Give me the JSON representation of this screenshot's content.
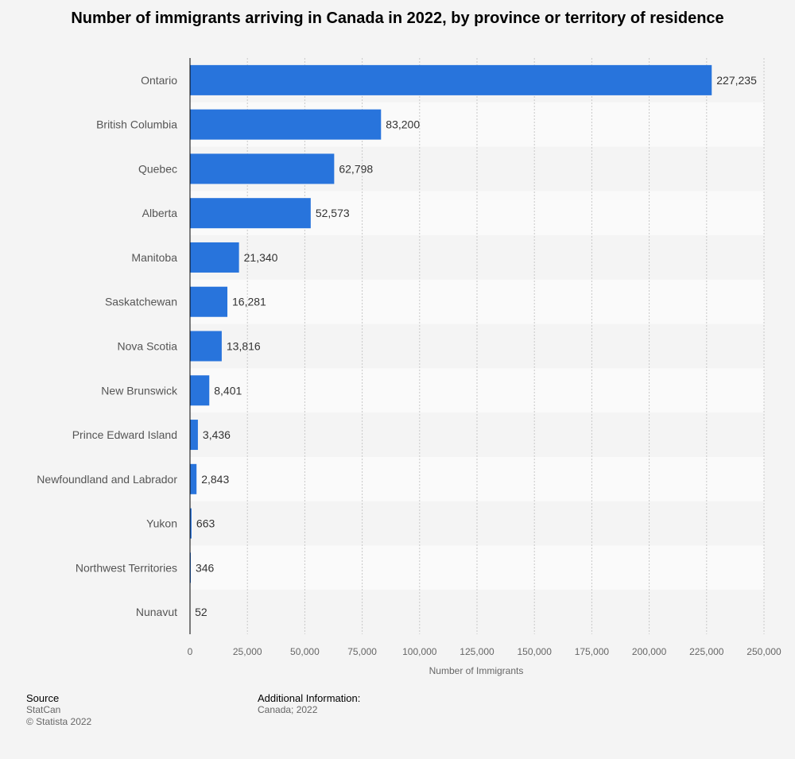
{
  "chart_data": {
    "type": "bar",
    "orientation": "horizontal",
    "title": "Number of immigrants arriving in Canada in 2022, by province or territory of residence",
    "xlabel": "Number of Immigrants",
    "ylabel": "",
    "xlim": [
      0,
      250000
    ],
    "xticks": [
      0,
      25000,
      50000,
      75000,
      100000,
      125000,
      150000,
      175000,
      200000,
      225000,
      250000
    ],
    "xtick_labels": [
      "0",
      "25,000",
      "50,000",
      "75,000",
      "100,000",
      "125,000",
      "150,000",
      "175,000",
      "200,000",
      "225,000",
      "250,000"
    ],
    "grid": true,
    "bar_color": "#2874dc",
    "categories": [
      "Ontario",
      "British Columbia",
      "Quebec",
      "Alberta",
      "Manitoba",
      "Saskatchewan",
      "Nova Scotia",
      "New Brunswick",
      "Prince Edward Island",
      "Newfoundland and Labrador",
      "Yukon",
      "Northwest Territories",
      "Nunavut"
    ],
    "values": [
      227235,
      83200,
      62798,
      52573,
      21340,
      16281,
      13816,
      8401,
      3436,
      2843,
      663,
      346,
      52
    ],
    "value_labels": [
      "227,235",
      "83,200",
      "62,798",
      "52,573",
      "21,340",
      "16,281",
      "13,816",
      "8,401",
      "3,436",
      "2,843",
      "663",
      "346",
      "52"
    ]
  },
  "footer": {
    "source_heading": "Source",
    "source_name": "StatCan",
    "copyright": "© Statista 2022",
    "additional_heading": "Additional Information:",
    "additional_text": "Canada; 2022"
  }
}
